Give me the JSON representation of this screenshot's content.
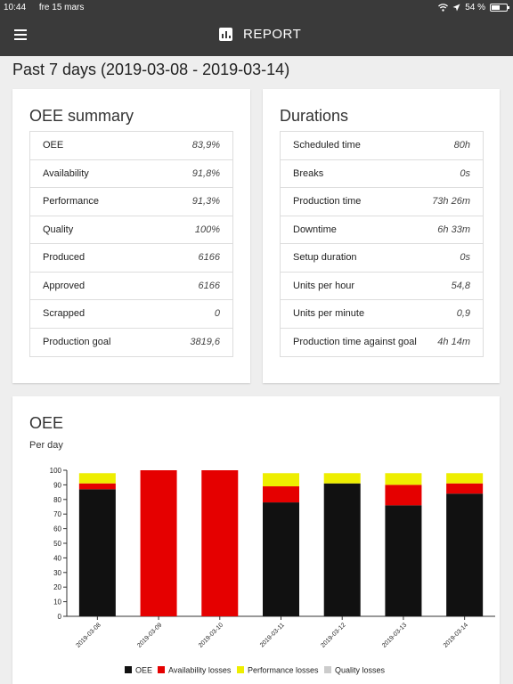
{
  "status_bar": {
    "time": "10:44",
    "date": "fre 15 mars",
    "battery": "54 %",
    "battery_fraction": 0.54
  },
  "app_bar": {
    "title": "REPORT"
  },
  "page": {
    "title": "Past 7 days (2019-03-08 - 2019-03-14)"
  },
  "oee_summary": {
    "title": "OEE summary",
    "rows": [
      {
        "label": "OEE",
        "value": "83,9%"
      },
      {
        "label": "Availability",
        "value": "91,8%"
      },
      {
        "label": "Performance",
        "value": "91,3%"
      },
      {
        "label": "Quality",
        "value": "100%"
      },
      {
        "label": "Produced",
        "value": "6166"
      },
      {
        "label": "Approved",
        "value": "6166"
      },
      {
        "label": "Scrapped",
        "value": "0"
      },
      {
        "label": "Production goal",
        "value": "3819,6"
      }
    ]
  },
  "durations": {
    "title": "Durations",
    "rows": [
      {
        "label": "Scheduled time",
        "value": "80h"
      },
      {
        "label": "Breaks",
        "value": "0s"
      },
      {
        "label": "Production time",
        "value": "73h 26m"
      },
      {
        "label": "Downtime",
        "value": "6h 33m"
      },
      {
        "label": "Setup duration",
        "value": "0s"
      },
      {
        "label": "Units per hour",
        "value": "54,8"
      },
      {
        "label": "Units per minute",
        "value": "0,9"
      },
      {
        "label": "Production time against goal",
        "value": "4h 14m"
      }
    ]
  },
  "chart_section": {
    "title": "OEE",
    "subtitle": "Per day",
    "chart_data": {
      "type": "bar",
      "stacked": true,
      "categories": [
        "2019-03-08",
        "2019-03-09",
        "2019-03-10",
        "2019-03-11",
        "2019-03-12",
        "2019-03-13",
        "2019-03-14"
      ],
      "ylim": [
        0,
        100
      ],
      "yticks": [
        0,
        10,
        20,
        30,
        40,
        50,
        60,
        70,
        80,
        90,
        100
      ],
      "legend_position": "bottom",
      "series": [
        {
          "name": "OEE",
          "color": "#111111",
          "values": [
            87,
            0,
            0,
            78,
            91,
            76,
            84
          ]
        },
        {
          "name": "Availability losses",
          "color": "#e50000",
          "values": [
            4,
            100,
            100,
            11,
            0,
            14,
            7
          ]
        },
        {
          "name": "Performance losses",
          "color": "#eeee00",
          "values": [
            7,
            0,
            0,
            9,
            7,
            8,
            7
          ]
        },
        {
          "name": "Quality losses",
          "color": "#cccccc",
          "values": [
            0,
            0,
            0,
            0,
            0,
            0,
            0
          ]
        }
      ]
    }
  }
}
